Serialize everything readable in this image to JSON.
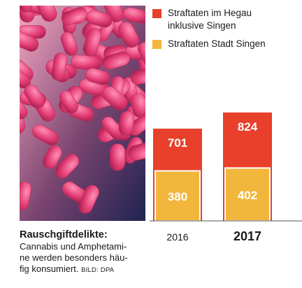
{
  "legend": {
    "items": [
      {
        "label_line1": "Straftaten im Hegau",
        "label_line2": "inklusive Singen",
        "color": "#e8402a"
      },
      {
        "label_line1": "Straftaten Stadt Singen",
        "label_line2": "",
        "color": "#f2b63c"
      }
    ]
  },
  "caption": {
    "title": "Rauschgiftdelikte:",
    "line1": "Cannabis und Amphetami-",
    "line2": "ne werden besonders häu-",
    "line3": "fig konsumiert.",
    "credit": "BILD: DPA"
  },
  "colors": {
    "hegau": "#e8402a",
    "singen": "#f2b63c",
    "pill": "#e9477d",
    "bg_dark": "#2a2e5c"
  },
  "chart_data": {
    "type": "bar",
    "categories": [
      "2016",
      "2017"
    ],
    "series": [
      {
        "name": "Straftaten im Hegau inklusive Singen",
        "values": [
          701,
          824
        ]
      },
      {
        "name": "Straftaten Stadt Singen",
        "values": [
          380,
          402
        ]
      }
    ],
    "ylim": [
      0,
      850
    ],
    "grid": false,
    "legend_position": "top-right",
    "bold_categories": [
      false,
      true
    ]
  }
}
